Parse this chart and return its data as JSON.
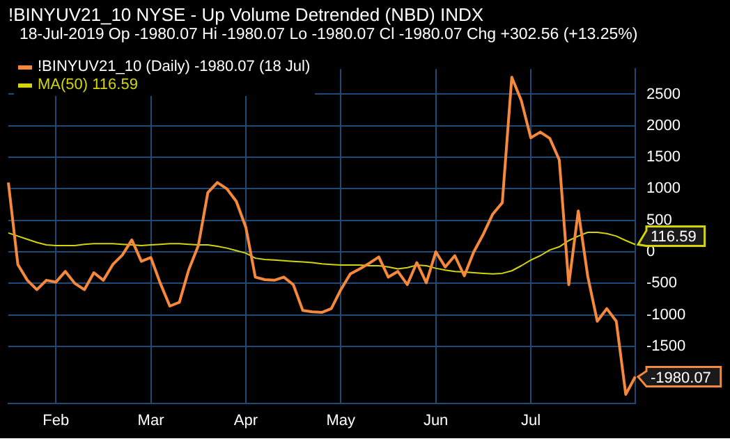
{
  "chart_data": {
    "type": "line",
    "title": "!BINYUV21_10 NYSE - Up Volume Detrended (NBD) INDX",
    "subtitle": "18-Jul-2019 Op -1980.07 Hi -1980.07 Lo -1980.07 Cl -1980.07 Chg +302.56 (+13.25%)",
    "categories": [
      null,
      null,
      null,
      null,
      null,
      "Feb",
      null,
      null,
      null,
      null,
      null,
      null,
      null,
      null,
      null,
      "Mar",
      null,
      null,
      null,
      null,
      null,
      null,
      null,
      null,
      null,
      "Apr",
      null,
      null,
      null,
      null,
      null,
      null,
      null,
      null,
      null,
      "May",
      null,
      null,
      null,
      null,
      null,
      null,
      null,
      null,
      null,
      "Jun",
      null,
      null,
      null,
      null,
      null,
      null,
      null,
      null,
      null,
      "Jul",
      null,
      null,
      null,
      null,
      null,
      null,
      null,
      null,
      null,
      null,
      null
    ],
    "series": [
      {
        "name": "!BINYUV21_10 (Daily) -1980.07 (18 Jul)",
        "color": "#f5883a",
        "values": [
          1100,
          -200,
          -450,
          -600,
          -450,
          -480,
          -310,
          -500,
          -600,
          -330,
          -450,
          -200,
          -50,
          190,
          -150,
          -90,
          -500,
          -860,
          -800,
          -280,
          100,
          940,
          1100,
          1000,
          800,
          390,
          -400,
          -440,
          -450,
          -400,
          -520,
          -930,
          -950,
          -960,
          -900,
          -600,
          -350,
          -270,
          -180,
          -80,
          -400,
          -310,
          -520,
          -170,
          -490,
          0,
          -240,
          -60,
          -380,
          0,
          280,
          600,
          780,
          2770,
          2400,
          1810,
          1900,
          1800,
          1460,
          -520,
          650,
          -390,
          -1100,
          -900,
          -1100,
          -2260,
          -1980.07
        ],
        "value_labels": [
          null,
          null,
          null,
          null,
          null,
          null,
          null,
          null,
          null,
          null,
          null,
          null,
          null,
          null,
          null,
          null,
          null,
          null,
          null,
          null,
          null,
          null,
          null,
          null,
          null,
          null,
          null,
          null,
          null,
          null,
          null,
          null,
          null,
          null,
          null,
          null,
          null,
          null,
          null,
          null,
          null,
          null,
          null,
          null,
          null,
          null,
          null,
          null,
          null,
          null,
          null,
          null,
          null,
          null,
          null,
          null,
          null,
          null,
          null,
          null,
          null,
          null,
          null,
          null,
          null,
          null,
          "-1980.07"
        ]
      },
      {
        "name": "MA(50) 116.59",
        "color": "#d4d40a",
        "values": [
          300,
          250,
          200,
          150,
          110,
          100,
          100,
          100,
          120,
          130,
          130,
          130,
          120,
          110,
          100,
          110,
          120,
          130,
          130,
          120,
          110,
          110,
          90,
          60,
          20,
          -20,
          -100,
          -120,
          -130,
          -140,
          -150,
          -160,
          -170,
          -190,
          -200,
          -210,
          -210,
          -210,
          -220,
          -220,
          -240,
          -270,
          -250,
          -210,
          -220,
          -260,
          -290,
          -310,
          -320,
          -330,
          -340,
          -350,
          -340,
          -300,
          -220,
          -130,
          -60,
          30,
          80,
          180,
          250,
          310,
          310,
          290,
          250,
          180,
          116.59
        ],
        "value_labels": [
          null,
          null,
          null,
          null,
          null,
          null,
          null,
          null,
          null,
          null,
          null,
          null,
          null,
          null,
          null,
          null,
          null,
          null,
          null,
          null,
          null,
          null,
          null,
          null,
          null,
          null,
          null,
          null,
          null,
          null,
          null,
          null,
          null,
          null,
          null,
          null,
          null,
          null,
          null,
          null,
          null,
          null,
          null,
          null,
          null,
          null,
          null,
          null,
          null,
          null,
          null,
          null,
          null,
          null,
          null,
          null,
          null,
          null,
          null,
          null,
          null,
          null,
          null,
          null,
          null,
          null,
          "116.59"
        ]
      }
    ],
    "ylim": [
      -2400,
      2900
    ],
    "yticks": [
      -1500,
      -1000,
      -500,
      0,
      500,
      1000,
      1500,
      2000,
      2500
    ],
    "grid": true,
    "legend": "top left",
    "marker": "none",
    "line_style": "solid"
  }
}
